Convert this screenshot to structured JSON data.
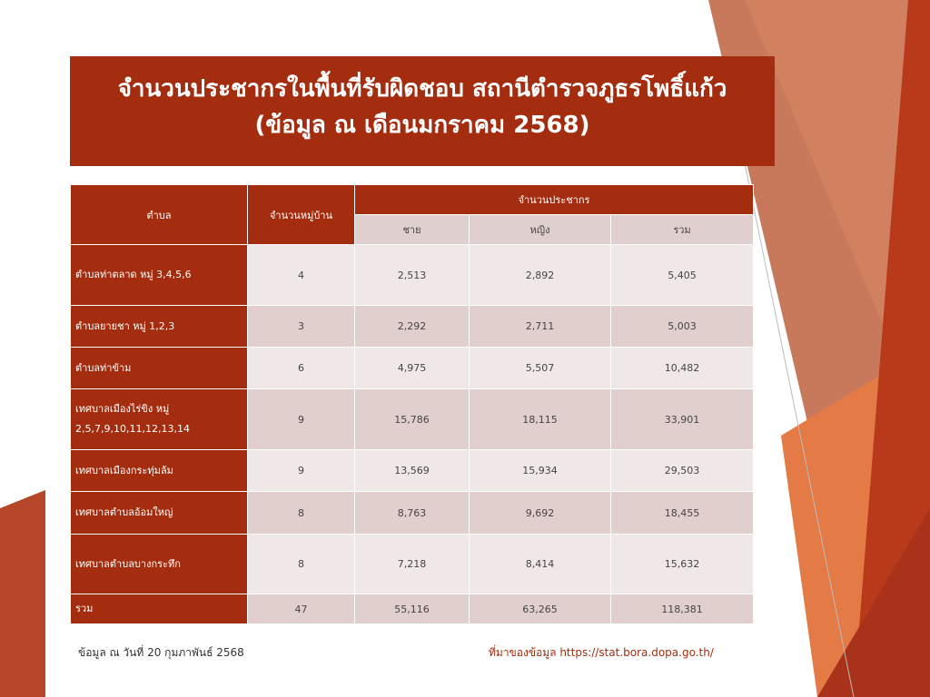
{
  "title": {
    "line1": "จำนวนประชากรในพื้นที่รับผิดชอบ สถานีตำรวจภูธรโพธิ์แก้ว",
    "line2": "(ข้อมูล ณ เดือนมกราคม 2568)"
  },
  "table": {
    "headers": {
      "tambon": "ตำบล",
      "villages": "จำนวนหมู่บ้าน",
      "population": "จำนวนประชากร",
      "male": "ชาย",
      "female": "หญิง",
      "total": "รวม"
    },
    "rows": [
      {
        "name": "ตำบลท่าตลาด หมู่ 3,4,5,6",
        "villages": "4",
        "male": "2,513",
        "female": "2,892",
        "total": "5,405"
      },
      {
        "name": "ตำบลยายชา หมู่ 1,2,3",
        "villages": "3",
        "male": "2,292",
        "female": "2,711",
        "total": "5,003"
      },
      {
        "name": "ตำบลท่าข้าม",
        "villages": "6",
        "male": "4,975",
        "female": "5,507",
        "total": "10,482"
      },
      {
        "name": "เทศบาลเมืองไร่ขิง หมู่ 2,5,7,9,10,11,12,13,14",
        "villages": "9",
        "male": "15,786",
        "female": "18,115",
        "total": "33,901"
      },
      {
        "name": "เทศบาลเมืองกระทุ่มล้ม",
        "villages": "9",
        "male": "13,569",
        "female": "15,934",
        "total": "29,503"
      },
      {
        "name": "เทศบาลตำบลอ้อมใหญ่",
        "villages": "8",
        "male": "8,763",
        "female": "9,692",
        "total": "18,455"
      },
      {
        "name": "เทศบาลตำบลบางกระทึก",
        "villages": "8",
        "male": "7,218",
        "female": "8,414",
        "total": "15,632"
      },
      {
        "name": "รวม",
        "villages": "47",
        "male": "55,116",
        "female": "63,265",
        "total": "118,381"
      }
    ]
  },
  "footer": {
    "date_note": "ข้อมูล ณ วันที่ 20 กุมภาพันธ์ 2568",
    "source": "ที่มาของข้อมูล https://stat.bora.dopa.go.th/"
  },
  "colors": {
    "accent": "#a52d0f",
    "orange": "#e06a35"
  }
}
